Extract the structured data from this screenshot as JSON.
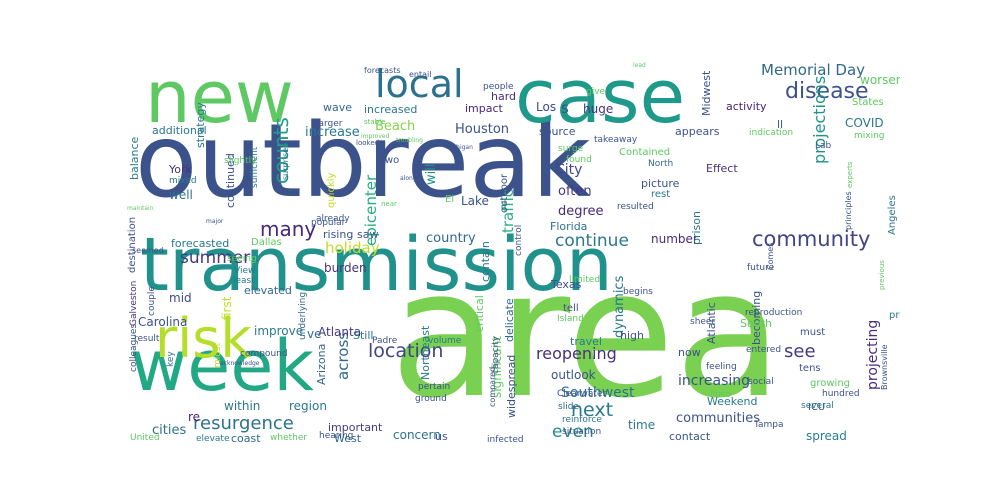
{
  "wordcloud": {
    "background": "#ffffff",
    "palette": "viridis",
    "words": [
      {
        "text": "outbreak",
        "color": "#3b528b"
      },
      {
        "text": "area",
        "color": "#7ad151"
      },
      {
        "text": "transmission",
        "color": "#21918c"
      },
      {
        "text": "case",
        "color": "#1f9a8a"
      },
      {
        "text": "new",
        "color": "#5ec962"
      },
      {
        "text": "week",
        "color": "#22a884"
      },
      {
        "text": "risk",
        "color": "#b5de2b"
      },
      {
        "text": "local",
        "color": "#2c728e"
      },
      {
        "text": "community",
        "color": "#414487"
      },
      {
        "text": "disease",
        "color": "#3b528b"
      },
      {
        "text": "Memorial Day",
        "color": "#31688e"
      },
      {
        "text": "continue",
        "color": "#2a788e"
      },
      {
        "text": "counts",
        "color": "#1f9e89"
      },
      {
        "text": "projections",
        "color": "#21918c"
      },
      {
        "text": "many",
        "color": "#482878"
      },
      {
        "text": "summer",
        "color": "#443983"
      },
      {
        "text": "resurgence",
        "color": "#2c728e"
      },
      {
        "text": "location",
        "color": "#414487"
      },
      {
        "text": "see",
        "color": "#443983"
      },
      {
        "text": "next",
        "color": "#2a788e"
      },
      {
        "text": "even",
        "color": "#23898e"
      },
      {
        "text": "increasing",
        "color": "#3b528b"
      },
      {
        "text": "reopening",
        "color": "#46327e"
      },
      {
        "text": "Southwest",
        "color": "#2c728e"
      },
      {
        "text": "holiday",
        "color": "#bddf26"
      },
      {
        "text": "epicenter",
        "color": "#26ad81"
      },
      {
        "text": "traffic",
        "color": "#2ab07f"
      },
      {
        "text": "across",
        "color": "#31688e"
      },
      {
        "text": "Houston",
        "color": "#3b528b"
      },
      {
        "text": "Beach",
        "color": "#84d44b"
      },
      {
        "text": "increase",
        "color": "#2a788e"
      },
      {
        "text": "COVID",
        "color": "#2a788e"
      },
      {
        "text": "worsen",
        "color": "#5ec962"
      },
      {
        "text": "City",
        "color": "#3e4a89"
      },
      {
        "text": "often",
        "color": "#443983"
      },
      {
        "text": "saw",
        "color": "#3b528b"
      },
      {
        "text": "will",
        "color": "#21918c"
      },
      {
        "text": "projecting",
        "color": "#472d7b"
      },
      {
        "text": "dynamics",
        "color": "#2a788e"
      },
      {
        "text": "outlook",
        "color": "#3b528b"
      },
      {
        "text": "communities",
        "color": "#3b528b"
      },
      {
        "text": "cities",
        "color": "#2c728e"
      },
      {
        "text": "significant",
        "color": "#5ec962"
      },
      {
        "text": "widespread",
        "color": "#3b528b"
      },
      {
        "text": "degree",
        "color": "#482878"
      },
      {
        "text": "country",
        "color": "#31688e"
      },
      {
        "text": "number",
        "color": "#482878"
      },
      {
        "text": "concern",
        "color": "#2c728e"
      },
      {
        "text": "time",
        "color": "#2a788e"
      },
      {
        "text": "spread",
        "color": "#26828e"
      },
      {
        "text": "activity",
        "color": "#482475"
      },
      {
        "text": "appears",
        "color": "#3b528b"
      },
      {
        "text": "Effect",
        "color": "#46327e"
      },
      {
        "text": "picture",
        "color": "#3b528b"
      },
      {
        "text": "huge",
        "color": "#46327e"
      },
      {
        "text": "impact",
        "color": "#482878"
      },
      {
        "text": "source",
        "color": "#3b528b"
      },
      {
        "text": "Los",
        "color": "#3e4a89"
      },
      {
        "text": "s",
        "color": "#3b528b"
      },
      {
        "text": "Lake",
        "color": "#3b528b"
      },
      {
        "text": "York",
        "color": "#46327e"
      },
      {
        "text": "well",
        "color": "#2c728e"
      },
      {
        "text": "additional",
        "color": "#2a788e"
      },
      {
        "text": "continued",
        "color": "#3b528b"
      },
      {
        "text": "burden",
        "color": "#46327e"
      },
      {
        "text": "forecasted",
        "color": "#2a788e"
      },
      {
        "text": "rising",
        "color": "#3b528b"
      },
      {
        "text": "elevated",
        "color": "#31688e"
      },
      {
        "text": "improve",
        "color": "#2a788e"
      },
      {
        "text": "Atlanta",
        "color": "#443983"
      },
      {
        "text": "Carolina",
        "color": "#3b528b"
      },
      {
        "text": "mid",
        "color": "#3e4a89"
      },
      {
        "text": "first",
        "color": "#bddf26"
      },
      {
        "text": "ve",
        "color": "#31688e"
      },
      {
        "text": "Still",
        "color": "#2a788e"
      },
      {
        "text": "Arizona",
        "color": "#31688e"
      },
      {
        "text": "within",
        "color": "#2a788e"
      },
      {
        "text": "region",
        "color": "#2a788e"
      },
      {
        "text": "important",
        "color": "#443983"
      },
      {
        "text": "coast",
        "color": "#31688e"
      },
      {
        "text": "West",
        "color": "#31688e"
      },
      {
        "text": "re",
        "color": "#481f70"
      },
      {
        "text": "contain",
        "color": "#2c728e"
      },
      {
        "text": "critical",
        "color": "#5ec962"
      },
      {
        "text": "Northeast",
        "color": "#2a788e"
      },
      {
        "text": "delicate",
        "color": "#31688e"
      },
      {
        "text": "Texas",
        "color": "#3b528b"
      },
      {
        "text": "Florida",
        "color": "#2c728e"
      },
      {
        "text": "prison",
        "color": "#2c728e"
      },
      {
        "text": "Atlantic",
        "color": "#3b528b"
      },
      {
        "text": "becoming",
        "color": "#3b528b"
      },
      {
        "text": "South",
        "color": "#5ec962"
      },
      {
        "text": "high",
        "color": "#3b528b"
      },
      {
        "text": "travel",
        "color": "#2a788e"
      },
      {
        "text": "now",
        "color": "#3b528b"
      },
      {
        "text": "contact",
        "color": "#3b528b"
      },
      {
        "text": "Weekend",
        "color": "#2a788e"
      },
      {
        "text": "Angeles",
        "color": "#2a788e"
      },
      {
        "text": "States",
        "color": "#5ec962"
      },
      {
        "text": "Midwest",
        "color": "#3b528b"
      },
      {
        "text": "Contained",
        "color": "#5ec962"
      },
      {
        "text": "strategy",
        "color": "#2a788e"
      },
      {
        "text": "balance",
        "color": "#2a788e"
      },
      {
        "text": "wave",
        "color": "#31688e"
      },
      {
        "text": "increased",
        "color": "#2a788e"
      },
      {
        "text": "hard",
        "color": "#472d7b"
      },
      {
        "text": "two",
        "color": "#3b528b"
      },
      {
        "text": "quickly",
        "color": "#bddf26"
      },
      {
        "text": "destination",
        "color": "#3b528b"
      },
      {
        "text": "mixed",
        "color": "#2a788e"
      },
      {
        "text": "Dallas",
        "color": "#5ec962"
      },
      {
        "text": "Galveston",
        "color": "#46327e"
      },
      {
        "text": "couple",
        "color": "#3b528b"
      },
      {
        "text": "seeing",
        "color": "#5ec962"
      },
      {
        "text": "least",
        "color": "#2a788e"
      },
      {
        "text": "View",
        "color": "#2a788e"
      },
      {
        "text": "underlying",
        "color": "#31688e"
      },
      {
        "text": "compound",
        "color": "#3b528b"
      },
      {
        "text": "result",
        "color": "#3b528b"
      },
      {
        "text": "colleagues",
        "color": "#3b528b"
      },
      {
        "text": "key",
        "color": "#2a788e"
      },
      {
        "text": "midst",
        "color": "#bddf26"
      },
      {
        "text": "Padre",
        "color": "#3b528b"
      },
      {
        "text": "volume",
        "color": "#2a788e"
      },
      {
        "text": "capacity",
        "color": "#3b528b"
      },
      {
        "text": "compared",
        "color": "#3b528b"
      },
      {
        "text": "pertain",
        "color": "#3b528b"
      },
      {
        "text": "ground",
        "color": "#3b528b"
      },
      {
        "text": "Clearwater",
        "color": "#3b528b"
      },
      {
        "text": "slide",
        "color": "#31688e"
      },
      {
        "text": "reinforce",
        "color": "#2a788e"
      },
      {
        "text": "infected",
        "color": "#3b528b"
      },
      {
        "text": "us",
        "color": "#3b528b"
      },
      {
        "text": "hearing",
        "color": "#3b528b"
      },
      {
        "text": "whether",
        "color": "#5ec962"
      },
      {
        "text": "elevate",
        "color": "#2a788e"
      },
      {
        "text": "United",
        "color": "#5ec962"
      },
      {
        "text": "Tampa",
        "color": "#3b528b"
      },
      {
        "text": "ICU",
        "color": "#3b528b"
      },
      {
        "text": "tens",
        "color": "#3b528b"
      },
      {
        "text": "hundred",
        "color": "#3b528b"
      },
      {
        "text": "social",
        "color": "#3b528b"
      },
      {
        "text": "growing",
        "color": "#5ec962"
      },
      {
        "text": "several",
        "color": "#2a788e"
      },
      {
        "text": "Brownsville",
        "color": "#3b528b"
      },
      {
        "text": "emphasizing",
        "color": "#5ec962"
      },
      {
        "text": "predicting",
        "color": "#2a788e"
      },
      {
        "text": "reproduction",
        "color": "#3b528b"
      },
      {
        "text": "must",
        "color": "#3b528b"
      },
      {
        "text": "Comes",
        "color": "#3b528b"
      },
      {
        "text": "future",
        "color": "#3b528b"
      },
      {
        "text": "sheer",
        "color": "#3b528b"
      },
      {
        "text": "Island",
        "color": "#5ec962"
      },
      {
        "text": "tell",
        "color": "#3b528b"
      },
      {
        "text": "begins",
        "color": "#3b528b"
      },
      {
        "text": "limited",
        "color": "#5ec962"
      },
      {
        "text": "Paso",
        "color": "#5ec962"
      },
      {
        "text": "feeling",
        "color": "#3b528b"
      },
      {
        "text": "situation",
        "color": "#3b528b"
      },
      {
        "text": "entered",
        "color": "#3b528b"
      },
      {
        "text": "North",
        "color": "#31688e"
      },
      {
        "text": "found",
        "color": "#5ec962"
      },
      {
        "text": "rest",
        "color": "#2a788e"
      },
      {
        "text": "resulted",
        "color": "#3b528b"
      },
      {
        "text": "surge",
        "color": "#5ec962"
      },
      {
        "text": "takeaway",
        "color": "#3b528b"
      },
      {
        "text": "indication",
        "color": "#5ec962"
      },
      {
        "text": "ll",
        "color": "#3b528b"
      },
      {
        "text": "mixing",
        "color": "#5ec962"
      },
      {
        "text": "principles",
        "color": "#3b528b"
      },
      {
        "text": "Lab",
        "color": "#3b528b"
      },
      {
        "text": "give",
        "color": "#5ec962"
      },
      {
        "text": "people",
        "color": "#3b528b"
      },
      {
        "text": "entail",
        "color": "#3b528b"
      },
      {
        "text": "forecasts",
        "color": "#3b528b"
      },
      {
        "text": "larger",
        "color": "#3b528b"
      },
      {
        "text": "stable",
        "color": "#5ec962"
      },
      {
        "text": "improved",
        "color": "#5ec962"
      },
      {
        "text": "looked",
        "color": "#3b528b"
      },
      {
        "text": "troubling",
        "color": "#5ec962"
      },
      {
        "text": "Michigan",
        "color": "#3b528b"
      },
      {
        "text": "along",
        "color": "#3b528b"
      },
      {
        "text": "near",
        "color": "#5ec962"
      },
      {
        "text": "sufficient",
        "color": "#2a788e"
      },
      {
        "text": "surprised",
        "color": "#2a788e"
      },
      {
        "text": "popular",
        "color": "#3b528b"
      },
      {
        "text": "El",
        "color": "#5ec962"
      },
      {
        "text": "control",
        "color": "#3b528b"
      },
      {
        "text": "outdoor",
        "color": "#3b528b"
      },
      {
        "text": "already",
        "color": "#3b528b"
      },
      {
        "text": "slightly",
        "color": "#5ec962"
      },
      {
        "text": "major",
        "color": "#3b528b"
      },
      {
        "text": "seemed",
        "color": "#3b528b"
      },
      {
        "text": "acknowledge",
        "color": "#3b528b"
      },
      {
        "text": "maintain",
        "color": "#5ec962"
      },
      {
        "text": "lead",
        "color": "#5ec962"
      },
      {
        "text": "previous",
        "color": "#5ec962"
      },
      {
        "text": "experts",
        "color": "#5ec962"
      }
    ]
  }
}
